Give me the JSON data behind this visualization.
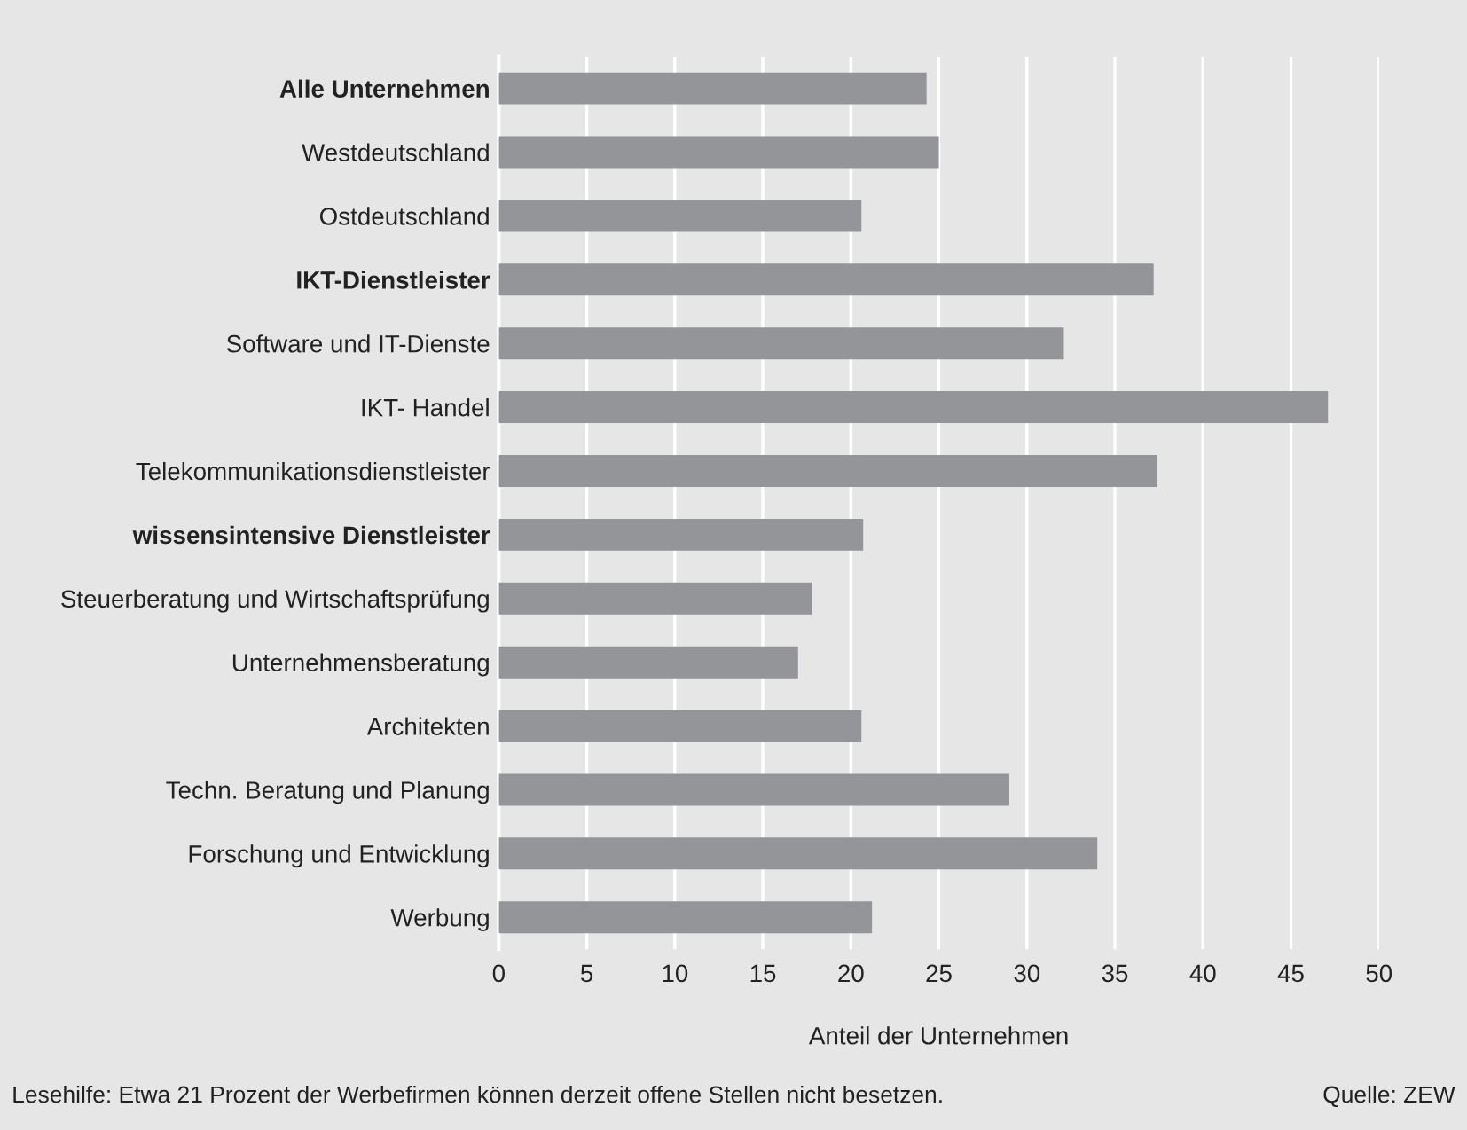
{
  "chart_data": {
    "type": "bar",
    "orientation": "horizontal",
    "xlabel": "Anteil der Unternehmen",
    "categories": [
      "Alle Unternehmen",
      "Westdeutschland",
      "Ostdeutschland",
      "IKT-Dienstleister",
      "Software und IT-Dienste",
      "IKT- Handel",
      "Telekommunikationsdienstleister",
      "wissensintensive Dienstleister",
      "Steuerberatung und Wirtschaftsprüfung",
      "Unternehmensberatung",
      "Architekten",
      "Techn. Beratung und Planung",
      "Forschung und Entwicklung",
      "Werbung"
    ],
    "values": [
      24.3,
      25.0,
      20.6,
      37.2,
      32.1,
      47.1,
      37.4,
      20.7,
      17.8,
      17.0,
      20.6,
      29.0,
      34.0,
      21.2
    ],
    "color": "#939598",
    "xlim": [
      0,
      50
    ],
    "xticks": [
      0,
      5,
      10,
      15,
      20,
      25,
      30,
      35,
      40,
      45,
      50
    ],
    "grid": "x",
    "annotations": [
      "Lesehilfe: Etwa 21 Prozent der Werbefirmen können derzeit offene Stellen nicht besetzen.",
      "Quelle: ZEW"
    ]
  }
}
